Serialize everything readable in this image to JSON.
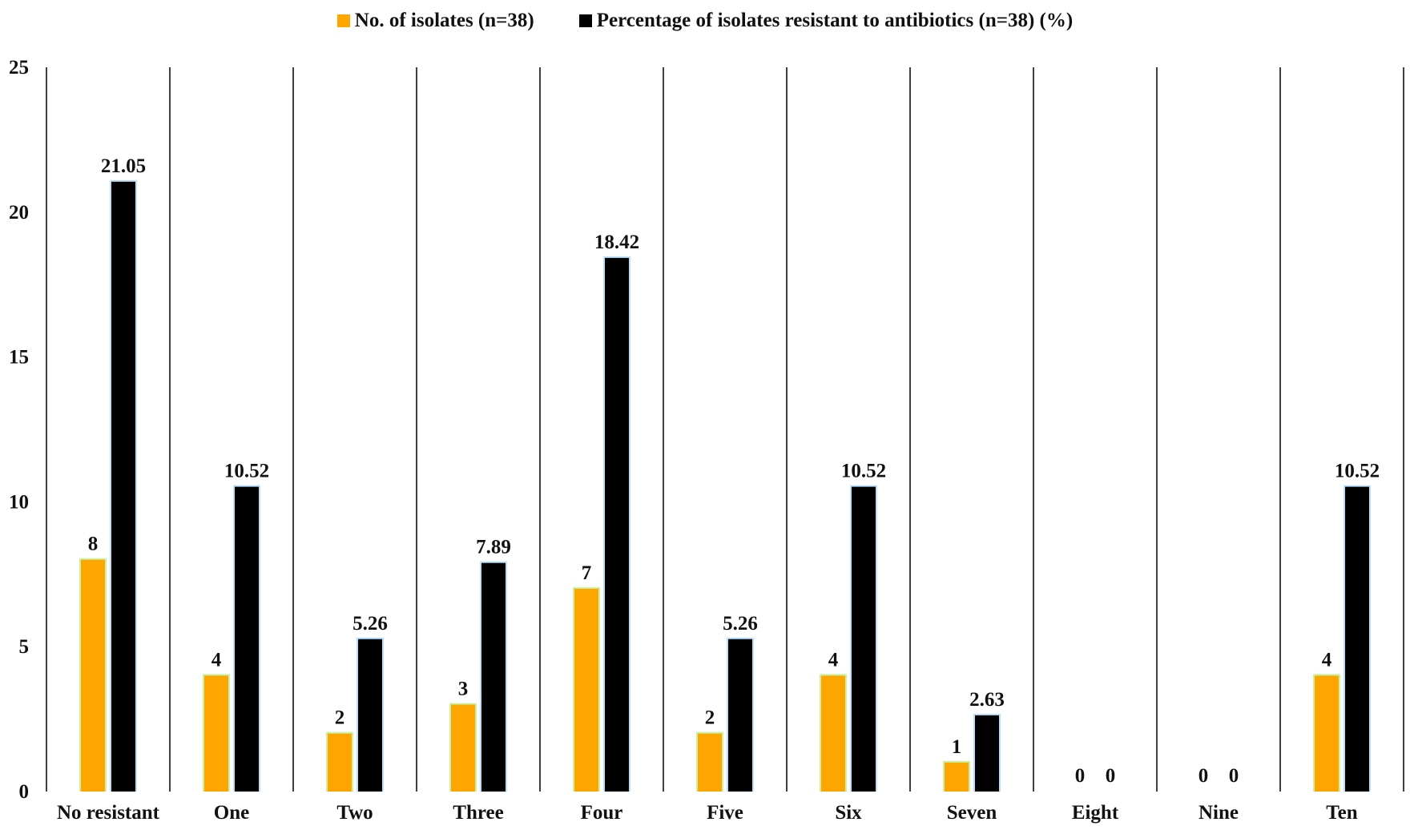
{
  "chart_data": {
    "type": "bar",
    "title": "",
    "xlabel": "",
    "ylabel": "",
    "ylim": [
      0,
      25
    ],
    "yticks": [
      0,
      5,
      10,
      15,
      20,
      25
    ],
    "grid": "vertical separators between categories",
    "legend_position": "top-center",
    "categories": [
      "No resistant",
      "One",
      "Two",
      "Three",
      "Four",
      "Five",
      "Six",
      "Seven",
      "Eight",
      "Nine",
      "Ten"
    ],
    "series": [
      {
        "name": "No. of isolates (n=38)",
        "color": "#FFA500",
        "values": [
          8,
          4,
          2,
          3,
          7,
          2,
          4,
          1,
          0,
          0,
          4
        ],
        "labels": [
          "8",
          "4",
          "2",
          "3",
          "7",
          "2",
          "4",
          "1",
          "0",
          "0",
          "4"
        ]
      },
      {
        "name": "Percentage of isolates resistant to antibiotics (n=38) (%)",
        "color": "#000000",
        "values": [
          21.05,
          10.52,
          5.26,
          7.89,
          18.42,
          5.26,
          10.52,
          2.63,
          0,
          0,
          10.52
        ],
        "labels": [
          "21.05",
          "10.52",
          "5.26",
          "7.89",
          "18.42",
          "5.26",
          "10.52",
          "2.63",
          "0",
          "0",
          "10.52"
        ]
      }
    ]
  }
}
